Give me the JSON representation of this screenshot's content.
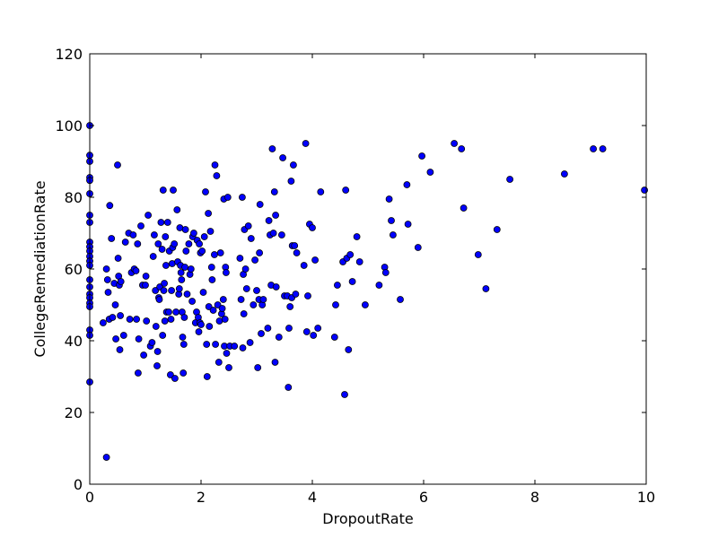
{
  "chart_data": {
    "type": "scatter",
    "title": "",
    "xlabel": "DropoutRate",
    "ylabel": "CollegeRemediationRate",
    "xlim": [
      0,
      10
    ],
    "ylim": [
      0,
      120
    ],
    "xticks": [
      0,
      2,
      4,
      6,
      8,
      10
    ],
    "yticks": [
      0,
      20,
      40,
      60,
      80,
      100,
      120
    ],
    "grid": false,
    "legend": "none",
    "marker_color": "#0000ff",
    "marker_edge_color": "#000000",
    "points": [
      [
        0,
        100
      ],
      [
        0,
        91.7
      ],
      [
        0,
        90
      ],
      [
        0,
        85.5
      ],
      [
        0,
        84.7
      ],
      [
        0,
        81
      ],
      [
        0,
        75
      ],
      [
        0,
        73
      ],
      [
        0,
        67.5
      ],
      [
        0,
        66.2
      ],
      [
        0,
        65
      ],
      [
        0,
        63.5
      ],
      [
        0,
        62.2
      ],
      [
        0,
        61
      ],
      [
        0,
        57
      ],
      [
        0,
        55
      ],
      [
        0,
        53
      ],
      [
        0,
        52
      ],
      [
        0,
        50.5
      ],
      [
        0,
        49.5
      ],
      [
        0,
        43
      ],
      [
        0,
        41.5
      ],
      [
        0,
        28.5
      ],
      [
        0.24,
        45
      ],
      [
        0.3,
        60
      ],
      [
        0.32,
        57
      ],
      [
        0.33,
        53.5
      ],
      [
        0.35,
        46
      ],
      [
        0.36,
        77.7
      ],
      [
        0.39,
        68.5
      ],
      [
        0.41,
        46.5
      ],
      [
        0.44,
        56
      ],
      [
        0.46,
        50
      ],
      [
        0.47,
        40.5
      ],
      [
        0.5,
        89
      ],
      [
        0.51,
        63
      ],
      [
        0.52,
        58
      ],
      [
        0.53,
        55.5
      ],
      [
        0.54,
        37.5
      ],
      [
        0.55,
        47
      ],
      [
        0.56,
        56.5
      ],
      [
        0.61,
        41.5
      ],
      [
        0.64,
        67.5
      ],
      [
        0.7,
        70
      ],
      [
        0.72,
        46
      ],
      [
        0.75,
        59
      ],
      [
        0.78,
        69.5
      ],
      [
        0.8,
        60
      ],
      [
        0.83,
        59.5
      ],
      [
        0.84,
        46
      ],
      [
        0.86,
        67
      ],
      [
        0.87,
        31
      ],
      [
        0.88,
        40.5
      ],
      [
        0.92,
        72
      ],
      [
        0.95,
        55.5
      ],
      [
        0.97,
        36
      ],
      [
        1.0,
        55.5
      ],
      [
        1.01,
        58
      ],
      [
        1.02,
        45.5
      ],
      [
        1.05,
        75
      ],
      [
        1.09,
        38.5
      ],
      [
        1.12,
        39.5
      ],
      [
        1.14,
        63.5
      ],
      [
        1.16,
        69.5
      ],
      [
        1.18,
        54
      ],
      [
        1.19,
        44
      ],
      [
        1.21,
        33
      ],
      [
        1.22,
        37
      ],
      [
        1.23,
        67
      ],
      [
        1.24,
        52
      ],
      [
        1.25,
        51.5
      ],
      [
        1.26,
        55
      ],
      [
        1.28,
        73
      ],
      [
        1.3,
        65.5
      ],
      [
        1.31,
        41.5
      ],
      [
        1.32,
        82
      ],
      [
        1.33,
        54
      ],
      [
        1.34,
        56
      ],
      [
        1.35,
        45.5
      ],
      [
        1.36,
        69
      ],
      [
        1.37,
        61
      ],
      [
        1.38,
        48
      ],
      [
        1.4,
        73
      ],
      [
        1.42,
        48
      ],
      [
        1.43,
        65
      ],
      [
        1.45,
        30.5
      ],
      [
        1.46,
        46
      ],
      [
        1.47,
        54
      ],
      [
        1.48,
        61.5
      ],
      [
        1.49,
        66
      ],
      [
        1.5,
        82
      ],
      [
        1.52,
        67
      ],
      [
        1.53,
        29.5
      ],
      [
        1.55,
        48
      ],
      [
        1.57,
        76.5
      ],
      [
        1.58,
        62
      ],
      [
        1.6,
        53
      ],
      [
        1.61,
        54.5
      ],
      [
        1.62,
        71.5
      ],
      [
        1.63,
        61
      ],
      [
        1.64,
        59
      ],
      [
        1.65,
        57
      ],
      [
        1.66,
        48
      ],
      [
        1.67,
        41
      ],
      [
        1.68,
        31
      ],
      [
        1.69,
        39
      ],
      [
        1.7,
        46.5
      ],
      [
        1.71,
        60.5
      ],
      [
        1.72,
        71
      ],
      [
        1.73,
        65
      ],
      [
        1.75,
        53
      ],
      [
        1.78,
        67
      ],
      [
        1.8,
        58.5
      ],
      [
        1.82,
        60
      ],
      [
        1.84,
        51
      ],
      [
        1.85,
        69
      ],
      [
        1.87,
        70
      ],
      [
        1.9,
        45
      ],
      [
        1.92,
        48
      ],
      [
        1.93,
        68
      ],
      [
        1.95,
        46.5
      ],
      [
        1.96,
        42.5
      ],
      [
        1.97,
        67
      ],
      [
        1.98,
        45
      ],
      [
        1.99,
        64.5
      ],
      [
        2.0,
        44.5
      ],
      [
        2.02,
        65
      ],
      [
        2.04,
        53.5
      ],
      [
        2.06,
        69
      ],
      [
        2.08,
        81.5
      ],
      [
        2.1,
        39
      ],
      [
        2.11,
        30
      ],
      [
        2.13,
        75.5
      ],
      [
        2.14,
        49.5
      ],
      [
        2.15,
        44
      ],
      [
        2.17,
        70.5
      ],
      [
        2.19,
        60.5
      ],
      [
        2.2,
        57
      ],
      [
        2.22,
        48.5
      ],
      [
        2.24,
        64
      ],
      [
        2.25,
        89
      ],
      [
        2.26,
        39
      ],
      [
        2.28,
        86
      ],
      [
        2.3,
        50
      ],
      [
        2.32,
        34
      ],
      [
        2.33,
        45.5
      ],
      [
        2.35,
        64.5
      ],
      [
        2.37,
        47.5
      ],
      [
        2.38,
        49
      ],
      [
        2.4,
        51.5
      ],
      [
        2.41,
        79.5
      ],
      [
        2.42,
        38.5
      ],
      [
        2.43,
        46
      ],
      [
        2.44,
        60.5
      ],
      [
        2.45,
        59
      ],
      [
        2.46,
        36.5
      ],
      [
        2.48,
        80
      ],
      [
        2.5,
        32.5
      ],
      [
        2.52,
        38.5
      ],
      [
        2.6,
        38.5
      ],
      [
        2.7,
        63
      ],
      [
        2.72,
        51.5
      ],
      [
        2.74,
        80
      ],
      [
        2.75,
        38
      ],
      [
        2.76,
        58.5
      ],
      [
        2.77,
        47.5
      ],
      [
        2.78,
        71
      ],
      [
        2.8,
        60
      ],
      [
        2.82,
        54.5
      ],
      [
        2.85,
        72
      ],
      [
        2.88,
        39.5
      ],
      [
        2.9,
        68.5
      ],
      [
        2.94,
        50
      ],
      [
        2.97,
        62.5
      ],
      [
        3.0,
        54
      ],
      [
        3.02,
        32.5
      ],
      [
        3.04,
        51.5
      ],
      [
        3.05,
        64.5
      ],
      [
        3.06,
        78
      ],
      [
        3.08,
        42
      ],
      [
        3.1,
        50
      ],
      [
        3.12,
        51.5
      ],
      [
        3.2,
        43.5
      ],
      [
        3.22,
        73.5
      ],
      [
        3.24,
        69.5
      ],
      [
        3.26,
        55.5
      ],
      [
        3.28,
        93.5
      ],
      [
        3.3,
        70
      ],
      [
        3.32,
        81.5
      ],
      [
        3.33,
        34
      ],
      [
        3.34,
        75
      ],
      [
        3.35,
        55
      ],
      [
        3.4,
        41
      ],
      [
        3.45,
        69.5
      ],
      [
        3.47,
        91
      ],
      [
        3.5,
        52.5
      ],
      [
        3.55,
        52.5
      ],
      [
        3.57,
        27
      ],
      [
        3.58,
        43.5
      ],
      [
        3.6,
        49.5
      ],
      [
        3.62,
        84.5
      ],
      [
        3.63,
        52
      ],
      [
        3.64,
        66.5
      ],
      [
        3.66,
        89
      ],
      [
        3.68,
        66.5
      ],
      [
        3.7,
        53
      ],
      [
        3.72,
        64.5
      ],
      [
        3.85,
        61
      ],
      [
        3.88,
        95
      ],
      [
        3.9,
        42.5
      ],
      [
        3.92,
        52.5
      ],
      [
        3.95,
        72.5
      ],
      [
        4.0,
        71.5
      ],
      [
        4.02,
        41.5
      ],
      [
        4.05,
        62.5
      ],
      [
        4.1,
        43.5
      ],
      [
        4.15,
        81.5
      ],
      [
        4.4,
        41
      ],
      [
        4.42,
        50
      ],
      [
        4.45,
        55.5
      ],
      [
        4.55,
        62
      ],
      [
        4.58,
        25
      ],
      [
        4.6,
        82
      ],
      [
        4.62,
        63
      ],
      [
        4.65,
        37.5
      ],
      [
        4.68,
        64
      ],
      [
        4.72,
        56.5
      ],
      [
        4.8,
        69
      ],
      [
        4.85,
        62
      ],
      [
        4.95,
        50
      ],
      [
        5.2,
        55.5
      ],
      [
        5.3,
        60.5
      ],
      [
        5.32,
        59
      ],
      [
        5.38,
        79.5
      ],
      [
        5.42,
        73.5
      ],
      [
        5.45,
        69.5
      ],
      [
        5.58,
        51.5
      ],
      [
        5.7,
        83.5
      ],
      [
        5.72,
        72.5
      ],
      [
        5.9,
        66
      ],
      [
        5.97,
        91.5
      ],
      [
        6.12,
        87
      ],
      [
        6.55,
        95
      ],
      [
        6.68,
        93.5
      ],
      [
        6.72,
        77
      ],
      [
        6.98,
        64
      ],
      [
        7.12,
        54.5
      ],
      [
        7.32,
        71
      ],
      [
        7.55,
        85
      ],
      [
        8.53,
        86.5
      ],
      [
        9.05,
        93.5
      ],
      [
        9.22,
        93.5
      ],
      [
        9.97,
        82
      ],
      [
        0.3,
        7.5
      ]
    ]
  }
}
